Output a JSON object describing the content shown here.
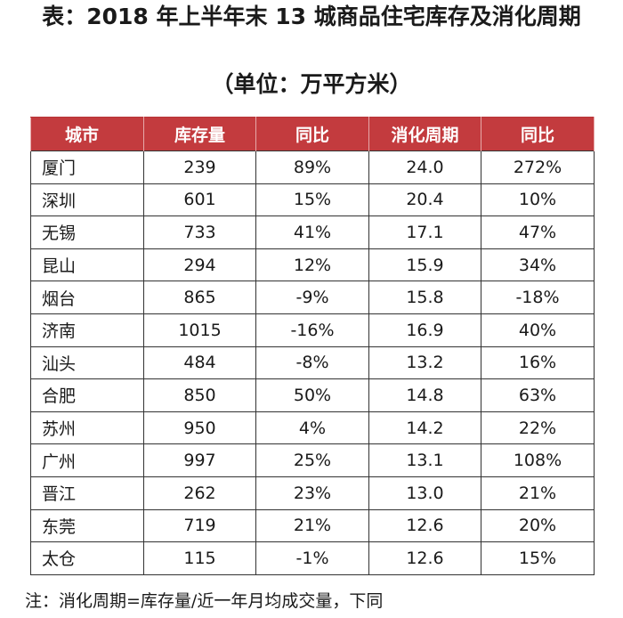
{
  "title": "表：2018 年上半年末 13 城商品住宅库存及消化周期",
  "subtitle": "（单位：万平方米）",
  "table": {
    "headers": [
      "城市",
      "库存量",
      "同比",
      "消化周期",
      "同比"
    ],
    "rows": [
      [
        "厦门",
        "239",
        "89%",
        "24.0",
        "272%"
      ],
      [
        "深圳",
        "601",
        "15%",
        "20.4",
        "10%"
      ],
      [
        "无锡",
        "733",
        "41%",
        "17.1",
        "47%"
      ],
      [
        "昆山",
        "294",
        "12%",
        "15.9",
        "34%"
      ],
      [
        "烟台",
        "865",
        "-9%",
        "15.8",
        "-18%"
      ],
      [
        "济南",
        "1015",
        "-16%",
        "16.9",
        "40%"
      ],
      [
        "汕头",
        "484",
        "-8%",
        "13.2",
        "16%"
      ],
      [
        "合肥",
        "850",
        "50%",
        "14.8",
        "63%"
      ],
      [
        "苏州",
        "950",
        "4%",
        "14.2",
        "22%"
      ],
      [
        "广州",
        "997",
        "25%",
        "13.1",
        "108%"
      ],
      [
        "晋江",
        "262",
        "23%",
        "13.0",
        "21%"
      ],
      [
        "东莞",
        "719",
        "21%",
        "12.6",
        "20%"
      ],
      [
        "太仓",
        "115",
        "-1%",
        "12.6",
        "15%"
      ]
    ]
  },
  "note": "注：消化周期=库存量/近一年月均成交量，下同",
  "colors": {
    "header_background": "#c33b3e",
    "header_text": "#ffffff"
  }
}
